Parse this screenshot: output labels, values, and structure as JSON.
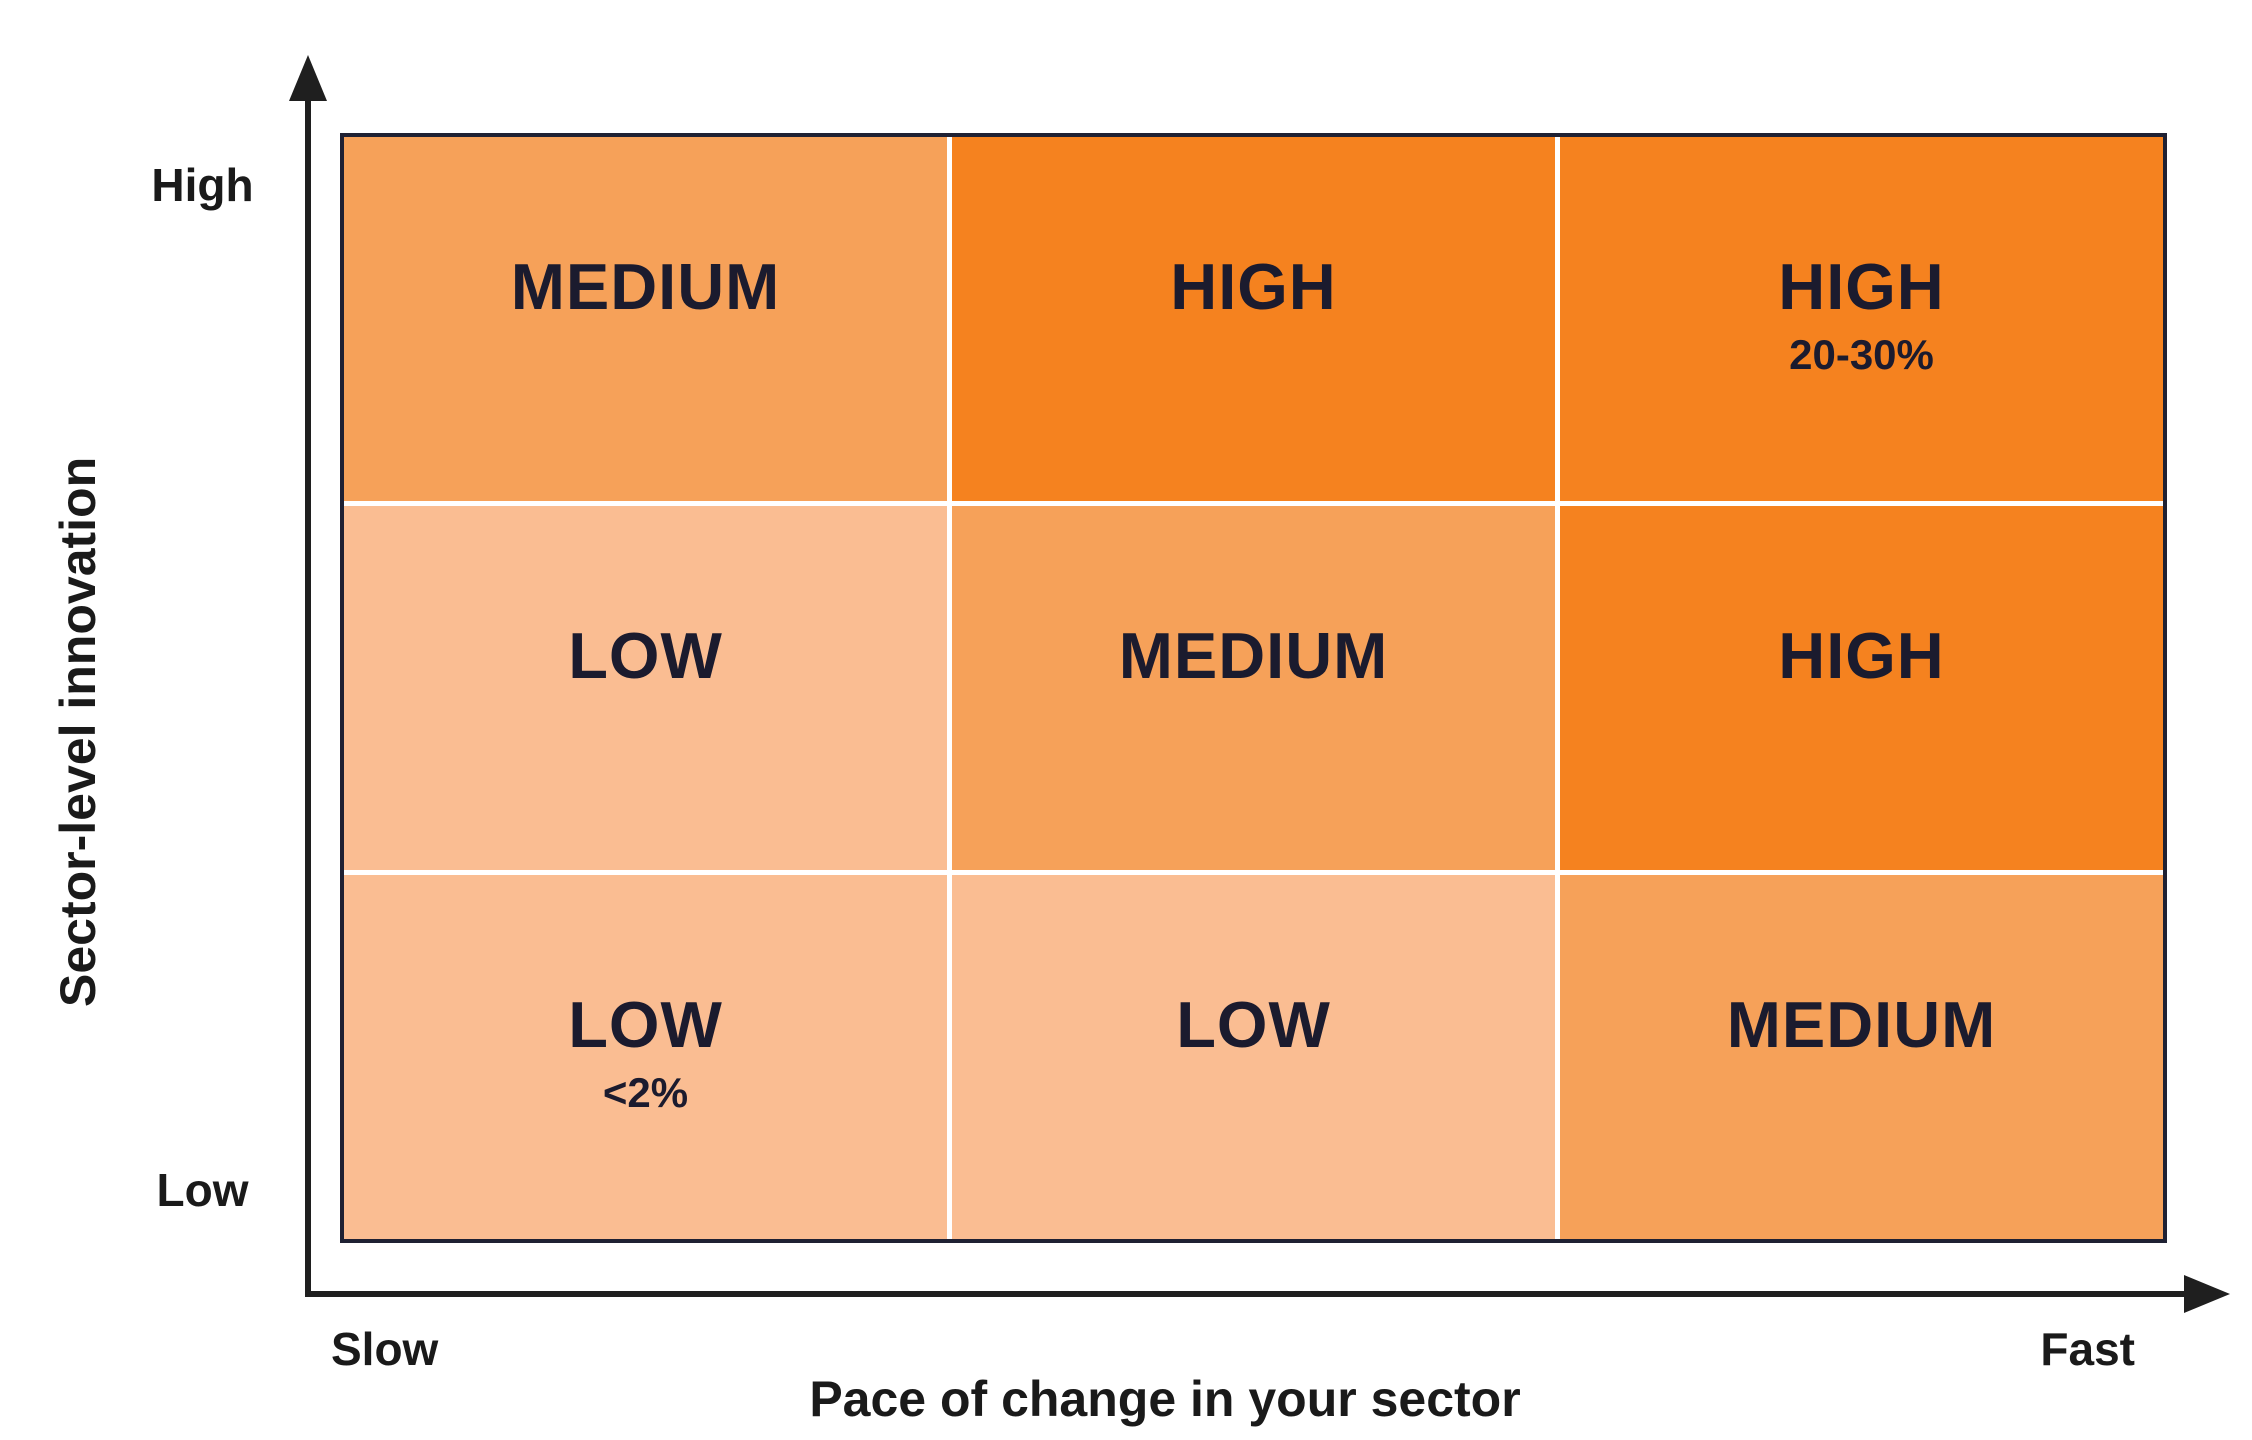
{
  "colors": {
    "high": "#F5821F",
    "medium": "#F6A159",
    "low": "#FABD92",
    "grid_border": "#1F2133",
    "grid_gap": "#FFFFFF",
    "cell_text": "#1B1B2E",
    "axis": "#1F1F1F"
  },
  "y_axis": {
    "title": "Sector-level innovation",
    "top_label": "High",
    "bottom_label": "Low"
  },
  "x_axis": {
    "title": "Pace of change in your sector",
    "left_label": "Slow",
    "right_label": "Fast"
  },
  "grid": {
    "rows": [
      {
        "cells": [
          {
            "label": "MEDIUM",
            "sublabel": "",
            "level": "medium"
          },
          {
            "label": "HIGH",
            "sublabel": "",
            "level": "high"
          },
          {
            "label": "HIGH",
            "sublabel": "20-30%",
            "level": "high"
          }
        ]
      },
      {
        "cells": [
          {
            "label": "LOW",
            "sublabel": "",
            "level": "low"
          },
          {
            "label": "MEDIUM",
            "sublabel": "",
            "level": "medium"
          },
          {
            "label": "HIGH",
            "sublabel": "",
            "level": "high"
          }
        ]
      },
      {
        "cells": [
          {
            "label": "LOW",
            "sublabel": "<2%",
            "level": "low"
          },
          {
            "label": "LOW",
            "sublabel": "",
            "level": "low"
          },
          {
            "label": "MEDIUM",
            "sublabel": "",
            "level": "medium"
          }
        ]
      }
    ]
  },
  "chart_data": {
    "type": "heatmap",
    "xlabel": "Pace of change in your sector",
    "ylabel": "Sector-level innovation",
    "x_range_labels": [
      "Slow",
      "Fast"
    ],
    "y_range_labels": [
      "Low",
      "High"
    ],
    "rows_top_to_bottom": [
      [
        "MEDIUM",
        "HIGH",
        "HIGH (20-30%)"
      ],
      [
        "LOW",
        "MEDIUM",
        "HIGH"
      ],
      [
        "LOW (<2%)",
        "LOW",
        "MEDIUM"
      ]
    ],
    "legend_position": "none",
    "grid": true
  }
}
